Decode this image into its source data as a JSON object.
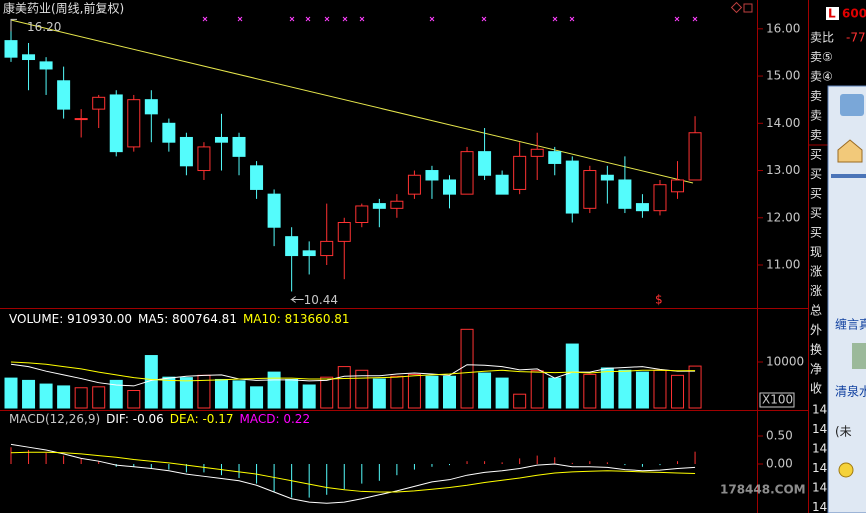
{
  "title": "康美药业(周线,前复权)",
  "chart_data": [
    {
      "type": "candlestick",
      "up_color": "#ff3232",
      "down_color": "#54fcfc",
      "open": [
        15.75,
        15.45,
        15.3,
        14.9,
        14.1,
        14.3,
        14.6,
        13.5,
        14.5,
        14.0,
        13.7,
        13.0,
        13.7,
        13.7,
        13.1,
        12.5,
        11.6,
        11.3,
        11.2,
        11.5,
        11.9,
        12.3,
        12.2,
        12.5,
        13.0,
        12.8,
        12.5,
        13.4,
        12.9,
        12.6,
        13.3,
        13.4,
        13.2,
        12.2,
        12.9,
        12.8,
        12.3,
        12.15,
        12.55,
        12.8
      ],
      "high": [
        16.2,
        15.7,
        15.4,
        15.2,
        14.3,
        14.6,
        14.7,
        14.6,
        14.7,
        14.1,
        13.8,
        13.6,
        14.2,
        13.8,
        13.2,
        12.6,
        11.8,
        11.5,
        12.3,
        12.0,
        12.3,
        12.4,
        12.5,
        13.0,
        13.1,
        12.9,
        13.5,
        13.9,
        13.0,
        13.6,
        13.8,
        13.5,
        13.3,
        13.1,
        13.1,
        13.3,
        12.5,
        12.8,
        13.2,
        14.15
      ],
      "low": [
        15.3,
        14.7,
        14.6,
        14.1,
        13.7,
        13.9,
        13.3,
        13.4,
        13.6,
        13.4,
        12.9,
        12.8,
        13.0,
        12.9,
        12.4,
        11.4,
        10.44,
        10.8,
        11.0,
        10.7,
        11.8,
        11.8,
        12.0,
        12.4,
        12.4,
        12.2,
        12.5,
        12.8,
        12.5,
        12.5,
        12.8,
        12.9,
        11.9,
        12.1,
        12.3,
        12.1,
        12.0,
        12.05,
        12.4,
        12.8
      ],
      "close": [
        15.4,
        15.35,
        15.15,
        14.3,
        14.1,
        14.55,
        13.4,
        14.5,
        14.2,
        13.6,
        13.1,
        13.5,
        13.6,
        13.3,
        12.6,
        11.8,
        11.2,
        11.2,
        11.5,
        11.9,
        12.25,
        12.2,
        12.35,
        12.9,
        12.8,
        12.5,
        13.4,
        12.9,
        12.5,
        13.3,
        13.45,
        13.15,
        12.1,
        13.0,
        12.8,
        12.2,
        12.15,
        12.7,
        12.8,
        13.8
      ],
      "ylim": [
        10.09,
        16.61
      ],
      "yticks": [
        {
          "value": 11,
          "label": "11.00"
        },
        {
          "value": 12,
          "label": "12.00"
        },
        {
          "value": 13,
          "label": "13.00"
        },
        {
          "value": 14,
          "label": "14.00"
        },
        {
          "value": 15,
          "label": "15.00"
        },
        {
          "value": 16,
          "label": "16.00"
        }
      ],
      "annotations": [
        {
          "value": 16.2,
          "label": "16.20"
        },
        {
          "value": 10.44,
          "label": "10.44"
        }
      ]
    },
    {
      "type": "volume",
      "label": "VOLUME: 910930.00",
      "label_color": "#ffffff",
      "values": [
        6500,
        6000,
        5200,
        4800,
        4400,
        4600,
        6000,
        3800,
        11400,
        6700,
        6600,
        7100,
        6200,
        5900,
        4600,
        7800,
        6200,
        5000,
        6700,
        9000,
        8200,
        6300,
        6900,
        7300,
        6900,
        6900,
        17100,
        7600,
        6500,
        3000,
        8100,
        6500,
        13900,
        7300,
        8700,
        8200,
        7800,
        8200,
        7100,
        9109.3
      ],
      "series": [
        {
          "legend": "MA5: 800764.81",
          "color": "#ffffff",
          "values": [
            9500,
            9000,
            8000,
            7200,
            6400,
            5500,
            5000,
            4800,
            6000,
            6500,
            6900,
            7100,
            7200,
            6300,
            6000,
            6100,
            6100,
            5900,
            6000,
            6900,
            7000,
            7000,
            7400,
            7600,
            7400,
            7100,
            9400,
            9300,
            9000,
            8300,
            8500,
            6500,
            7800,
            7800,
            8600,
            8800,
            9000,
            8400,
            8000,
            8007.65
          ]
        },
        {
          "legend": "MA10: 813660.81",
          "color": "#ffff00",
          "values": [
            10000,
            9800,
            9500,
            9000,
            8500,
            7800,
            7200,
            6600,
            6200,
            6000,
            5900,
            6000,
            6100,
            6300,
            6400,
            6500,
            6500,
            6300,
            6300,
            6400,
            6500,
            6600,
            6700,
            7000,
            7200,
            7400,
            7700,
            8000,
            8200,
            7900,
            7800,
            7700,
            7800,
            7600,
            7900,
            8000,
            8200,
            8200,
            8100,
            8136.61
          ]
        }
      ],
      "ylim": [
        0,
        21300
      ],
      "yticks": [
        10000
      ],
      "unit": "X100"
    },
    {
      "type": "macd",
      "label": "MACD(12,26,9)",
      "label_color": "#c8c8c8",
      "series": [
        {
          "legend": "DIF: -0.06",
          "color": "#ffffff",
          "values": [
            0.35,
            0.3,
            0.25,
            0.18,
            0.1,
            0.05,
            -0.02,
            -0.05,
            -0.08,
            -0.12,
            -0.18,
            -0.22,
            -0.26,
            -0.3,
            -0.38,
            -0.5,
            -0.62,
            -0.68,
            -0.7,
            -0.68,
            -0.62,
            -0.55,
            -0.48,
            -0.4,
            -0.32,
            -0.28,
            -0.2,
            -0.15,
            -0.12,
            -0.08,
            -0.02,
            0.0,
            -0.05,
            -0.05,
            -0.06,
            -0.1,
            -0.12,
            -0.11,
            -0.08,
            -0.06
          ]
        },
        {
          "legend": "DEA: -0.17",
          "color": "#ffff00",
          "values": [
            0.2,
            0.21,
            0.21,
            0.2,
            0.18,
            0.15,
            0.12,
            0.08,
            0.05,
            0.02,
            -0.02,
            -0.06,
            -0.1,
            -0.14,
            -0.18,
            -0.24,
            -0.3,
            -0.36,
            -0.42,
            -0.46,
            -0.49,
            -0.5,
            -0.5,
            -0.48,
            -0.45,
            -0.42,
            -0.38,
            -0.33,
            -0.29,
            -0.25,
            -0.2,
            -0.16,
            -0.14,
            -0.13,
            -0.12,
            -0.13,
            -0.14,
            -0.15,
            -0.16,
            -0.17
          ]
        }
      ],
      "histogram": {
        "legend": "MACD: 0.22",
        "color": "#ff00ff",
        "values": [
          0.3,
          0.25,
          0.2,
          0.15,
          0.1,
          0.05,
          -0.05,
          -0.05,
          -0.08,
          -0.1,
          -0.15,
          -0.15,
          -0.2,
          -0.25,
          -0.35,
          -0.5,
          -0.6,
          -0.6,
          -0.55,
          -0.45,
          -0.35,
          -0.3,
          -0.2,
          -0.1,
          -0.05,
          -0.02,
          0.05,
          0.05,
          0.03,
          0.1,
          0.15,
          0.12,
          0.02,
          0.05,
          0.03,
          -0.02,
          -0.05,
          -0.02,
          0.05,
          0.22
        ]
      },
      "ylim": [
        -0.875,
        0.964
      ],
      "yticks": [
        {
          "value": 0,
          "label": "0.00"
        },
        {
          "value": 0.5,
          "label": "0.50"
        }
      ]
    }
  ],
  "side_panel": {
    "code": "600",
    "badge": "L",
    "sell_ratio": "-77",
    "rows": [
      "卖比",
      "卖⑤",
      "卖④",
      "卖",
      "卖",
      "卖",
      "买",
      "买",
      "买",
      "买",
      "买",
      "现",
      "涨",
      "涨",
      "总",
      "外",
      "换",
      "净",
      "收"
    ],
    "numbers": [
      "14",
      "14",
      "14",
      "14",
      "14",
      "14"
    ]
  },
  "popup": {
    "items": [
      "缠言真",
      "清泉水",
      "(未"
    ]
  },
  "watermark": "178448.COM"
}
